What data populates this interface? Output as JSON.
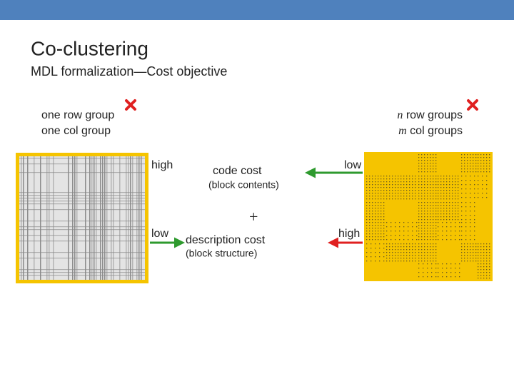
{
  "header": {
    "title": "Co-clustering",
    "subtitle": "MDL formalization—Cost objective"
  },
  "left": {
    "line1": "one row group",
    "line2": "one col group"
  },
  "right": {
    "line1": {
      "var": "n",
      "text": "row groups"
    },
    "line2": {
      "var": "m",
      "text": "col groups"
    }
  },
  "code_cost": {
    "left_level": "high",
    "label": "code cost",
    "note": "(block contents)",
    "right_level": "low"
  },
  "plus": "+",
  "description_cost": {
    "left_level": "low",
    "label": "description cost",
    "note": "(block structure)",
    "right_level": "high"
  }
}
